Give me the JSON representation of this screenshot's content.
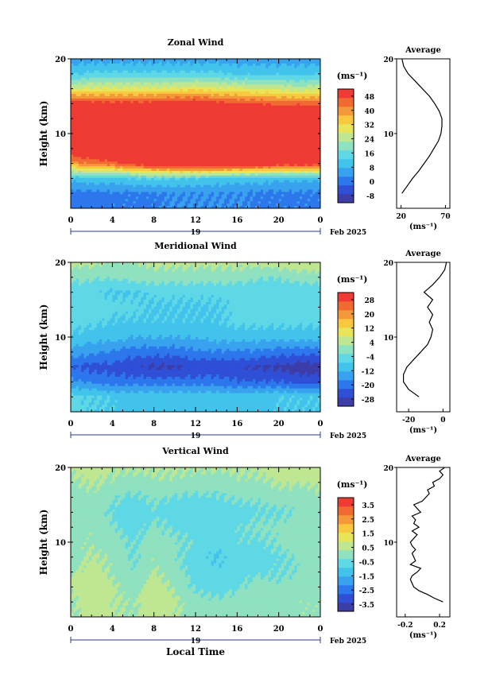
{
  "colorscale": [
    "#3d3da8",
    "#2f4fd6",
    "#2d77ec",
    "#38a2ee",
    "#41c3ec",
    "#5fd8e6",
    "#8fe1bf",
    "#bfe792",
    "#e8e55a",
    "#f8c83e",
    "#f5983a",
    "#f06a32",
    "#ee3b33"
  ],
  "chart_data": [
    {
      "type": "heatmap",
      "title": "Zonal Wind",
      "ylabel": "Height (km)",
      "yticks": [
        "20",
        "10"
      ],
      "xticks": [
        "0",
        "4",
        "8",
        "12",
        "16",
        "20",
        "0"
      ],
      "date_label": "19",
      "date_suffix": "Feb 2025",
      "x": [
        0,
        2,
        4,
        6,
        8,
        10,
        12,
        14,
        16,
        18,
        20,
        22,
        24
      ],
      "y": [
        2,
        4,
        6,
        8,
        10,
        12,
        14,
        16,
        18,
        20
      ],
      "values": [
        [
          4,
          4,
          5,
          5,
          5,
          6,
          6,
          6,
          6,
          5,
          5,
          5,
          5
        ],
        [
          12,
          14,
          14,
          15,
          16,
          16,
          15,
          14,
          13,
          13,
          12,
          12,
          12
        ],
        [
          40,
          44,
          46,
          50,
          55,
          56,
          58,
          58,
          56,
          54,
          52,
          52,
          52
        ],
        [
          55,
          56,
          58,
          58,
          58,
          58,
          58,
          58,
          58,
          58,
          58,
          58,
          58
        ],
        [
          58,
          58,
          58,
          58,
          58,
          58,
          58,
          58,
          58,
          58,
          58,
          58,
          58
        ],
        [
          58,
          58,
          58,
          58,
          58,
          58,
          58,
          58,
          58,
          58,
          58,
          58,
          58
        ],
        [
          52,
          50,
          50,
          50,
          50,
          52,
          52,
          50,
          48,
          48,
          46,
          46,
          46
        ],
        [
          28,
          30,
          30,
          30,
          30,
          30,
          32,
          30,
          30,
          28,
          28,
          26,
          28
        ],
        [
          14,
          16,
          16,
          16,
          16,
          16,
          16,
          16,
          14,
          14,
          14,
          14,
          14
        ],
        [
          8,
          8,
          8,
          8,
          8,
          8,
          8,
          8,
          8,
          8,
          8,
          8,
          8
        ]
      ],
      "colorbar_label": "(ms⁻¹)",
      "colorbar_ticks": [
        "48",
        "40",
        "32",
        "24",
        "16",
        "8",
        "0",
        "-8"
      ],
      "colorbar_range": [
        -8,
        52
      ],
      "avg_title": "Average",
      "avg_xticks": [
        "20",
        "70"
      ],
      "avg_xlabel": "(ms⁻¹)",
      "avg_xlim": [
        15,
        75
      ],
      "avg_profile": {
        "h": [
          2,
          3,
          4,
          5,
          6,
          7,
          8,
          9,
          10,
          11,
          12,
          13,
          14,
          15,
          16,
          17,
          18,
          19,
          20
        ],
        "v": [
          21,
          27,
          33,
          40,
          46,
          52,
          57,
          62,
          65,
          66,
          66,
          63,
          58,
          52,
          44,
          36,
          28,
          23,
          21
        ]
      }
    },
    {
      "type": "heatmap",
      "title": "Meridional Wind",
      "ylabel": "Height (km)",
      "yticks": [
        "20",
        "10"
      ],
      "xticks": [
        "0",
        "4",
        "8",
        "12",
        "16",
        "20",
        "0"
      ],
      "date_label": "19",
      "date_suffix": "Feb 2025",
      "x": [
        0,
        2,
        4,
        6,
        8,
        10,
        12,
        14,
        16,
        18,
        20,
        22,
        24
      ],
      "y": [
        2,
        4,
        6,
        8,
        10,
        12,
        14,
        16,
        18,
        20
      ],
      "values": [
        [
          -6,
          -7,
          -8,
          -9,
          -9,
          -9,
          -9,
          -9,
          -9,
          -9,
          -8,
          -8,
          -8
        ],
        [
          -16,
          -18,
          -20,
          -20,
          -20,
          -20,
          -20,
          -20,
          -22,
          -22,
          -22,
          -24,
          -24
        ],
        [
          -22,
          -24,
          -24,
          -26,
          -28,
          -28,
          -26,
          -26,
          -26,
          -28,
          -28,
          -30,
          -30
        ],
        [
          -14,
          -16,
          -18,
          -20,
          -20,
          -20,
          -18,
          -18,
          -18,
          -18,
          -20,
          -20,
          -20
        ],
        [
          -8,
          -10,
          -10,
          -12,
          -12,
          -12,
          -12,
          -10,
          -10,
          -10,
          -10,
          -10,
          -10
        ],
        [
          -6,
          -6,
          -8,
          -8,
          -8,
          -8,
          -8,
          -8,
          -6,
          -6,
          -6,
          -6,
          -6
        ],
        [
          -4,
          -4,
          -6,
          -6,
          -8,
          -8,
          -8,
          -8,
          -6,
          -6,
          -6,
          -4,
          -4
        ],
        [
          -6,
          -6,
          -8,
          -8,
          -6,
          -6,
          -6,
          -6,
          -6,
          -6,
          -6,
          -6,
          -6
        ],
        [
          0,
          -2,
          -2,
          0,
          0,
          0,
          0,
          0,
          0,
          -2,
          -2,
          0,
          0
        ],
        [
          4,
          4,
          2,
          2,
          4,
          4,
          4,
          4,
          4,
          4,
          6,
          6,
          6
        ]
      ],
      "colorbar_label": "(ms⁻¹)",
      "colorbar_ticks": [
        "28",
        "20",
        "12",
        "4",
        "-4",
        "-12",
        "-20",
        "-28"
      ],
      "colorbar_range": [
        -32,
        32
      ],
      "avg_title": "Average",
      "avg_xticks": [
        "-20",
        "0"
      ],
      "avg_xlabel": "(ms⁻¹)",
      "avg_xlim": [
        -27,
        4
      ],
      "avg_profile": {
        "h": [
          2,
          3,
          4,
          5,
          6,
          7,
          8,
          9,
          10,
          11,
          12,
          13,
          14,
          15,
          16,
          17,
          18,
          19,
          20
        ],
        "v": [
          -14,
          -20,
          -23,
          -23,
          -21,
          -17,
          -13,
          -9,
          -7,
          -6,
          -8,
          -6,
          -9,
          -6,
          -11,
          -6,
          -2,
          1,
          2
        ]
      }
    },
    {
      "type": "heatmap",
      "title": "Vertical Wind",
      "ylabel": "Height (km)",
      "yticks": [
        "20",
        "10"
      ],
      "xticks": [
        "0",
        "4",
        "8",
        "12",
        "16",
        "20",
        "0"
      ],
      "date_label": "19",
      "date_suffix": "Feb 2025",
      "xlabel": "Local Time",
      "x": [
        0,
        2,
        4,
        6,
        8,
        10,
        12,
        14,
        16,
        18,
        20,
        22,
        24
      ],
      "y": [
        2,
        4,
        6,
        8,
        10,
        12,
        14,
        16,
        18,
        20
      ],
      "values": [
        [
          0.2,
          0.6,
          0.4,
          0.2,
          0.8,
          0.4,
          0.0,
          -0.2,
          0.0,
          0.2,
          0.0,
          0.2,
          0.2
        ],
        [
          0.4,
          0.8,
          0.4,
          0.0,
          0.6,
          0.2,
          -0.4,
          -0.6,
          -0.4,
          0.0,
          -0.2,
          0.0,
          0.2
        ],
        [
          0.2,
          0.6,
          0.2,
          -0.2,
          0.4,
          0.0,
          -0.6,
          -0.8,
          -0.6,
          -0.4,
          -0.4,
          -0.2,
          0.0
        ],
        [
          0.0,
          0.4,
          0.2,
          -0.4,
          0.2,
          -0.2,
          -0.6,
          -1.0,
          -0.6,
          -0.6,
          -0.4,
          -0.2,
          0.0
        ],
        [
          0.2,
          0.2,
          0.0,
          -0.4,
          0.0,
          -0.2,
          -0.4,
          -0.8,
          -0.4,
          -0.4,
          -0.2,
          0.0,
          0.2
        ],
        [
          0.0,
          0.2,
          -0.2,
          -0.6,
          -0.2,
          -0.4,
          -0.6,
          -0.6,
          -0.4,
          -0.2,
          -0.2,
          0.0,
          0.0
        ],
        [
          -0.2,
          0.0,
          -0.4,
          -0.8,
          -0.4,
          -0.6,
          -0.8,
          -0.6,
          -0.6,
          -0.4,
          -0.4,
          -0.2,
          -0.2
        ],
        [
          0.0,
          0.2,
          -0.2,
          -0.4,
          -0.2,
          -0.4,
          -0.4,
          -0.4,
          -0.2,
          -0.2,
          0.0,
          0.0,
          0.2
        ],
        [
          0.2,
          0.4,
          0.2,
          0.0,
          0.2,
          0.2,
          0.0,
          0.0,
          0.2,
          0.2,
          0.4,
          0.4,
          0.4
        ],
        [
          0.4,
          0.6,
          0.4,
          0.4,
          0.4,
          0.4,
          0.4,
          0.4,
          0.4,
          0.4,
          0.6,
          0.6,
          0.6
        ]
      ],
      "colorbar_label": "(ms⁻¹)",
      "colorbar_ticks": [
        "3.5",
        "2.5",
        "1.5",
        "0.5",
        "-0.5",
        "-1.5",
        "-2.5",
        "-3.5"
      ],
      "colorbar_range": [
        -4,
        4
      ],
      "avg_title": "Average",
      "avg_xticks": [
        "-0.2",
        "0.2"
      ],
      "avg_xlabel": "(ms⁻¹)",
      "avg_xlim": [
        -0.3,
        0.32
      ],
      "avg_profile": {
        "h": [
          2,
          2.5,
          3,
          3.5,
          4,
          4.5,
          5,
          5.5,
          6,
          6.5,
          7,
          7.5,
          8,
          8.5,
          9,
          9.5,
          10,
          10.5,
          11,
          11.5,
          12,
          12.5,
          13,
          13.5,
          14,
          14.5,
          15,
          15.5,
          16,
          16.5,
          17,
          17.5,
          18,
          18.5,
          19,
          19.5,
          20
        ],
        "v": [
          0.24,
          0.14,
          0.06,
          -0.04,
          -0.1,
          -0.12,
          -0.14,
          -0.12,
          -0.06,
          -0.02,
          -0.14,
          -0.08,
          -0.1,
          -0.12,
          -0.08,
          -0.12,
          -0.14,
          -0.1,
          -0.06,
          -0.12,
          -0.04,
          -0.1,
          -0.08,
          -0.12,
          -0.02,
          -0.06,
          -0.1,
          0.0,
          0.04,
          0.08,
          0.06,
          0.14,
          0.12,
          0.2,
          0.24,
          0.2,
          0.26
        ]
      }
    }
  ]
}
